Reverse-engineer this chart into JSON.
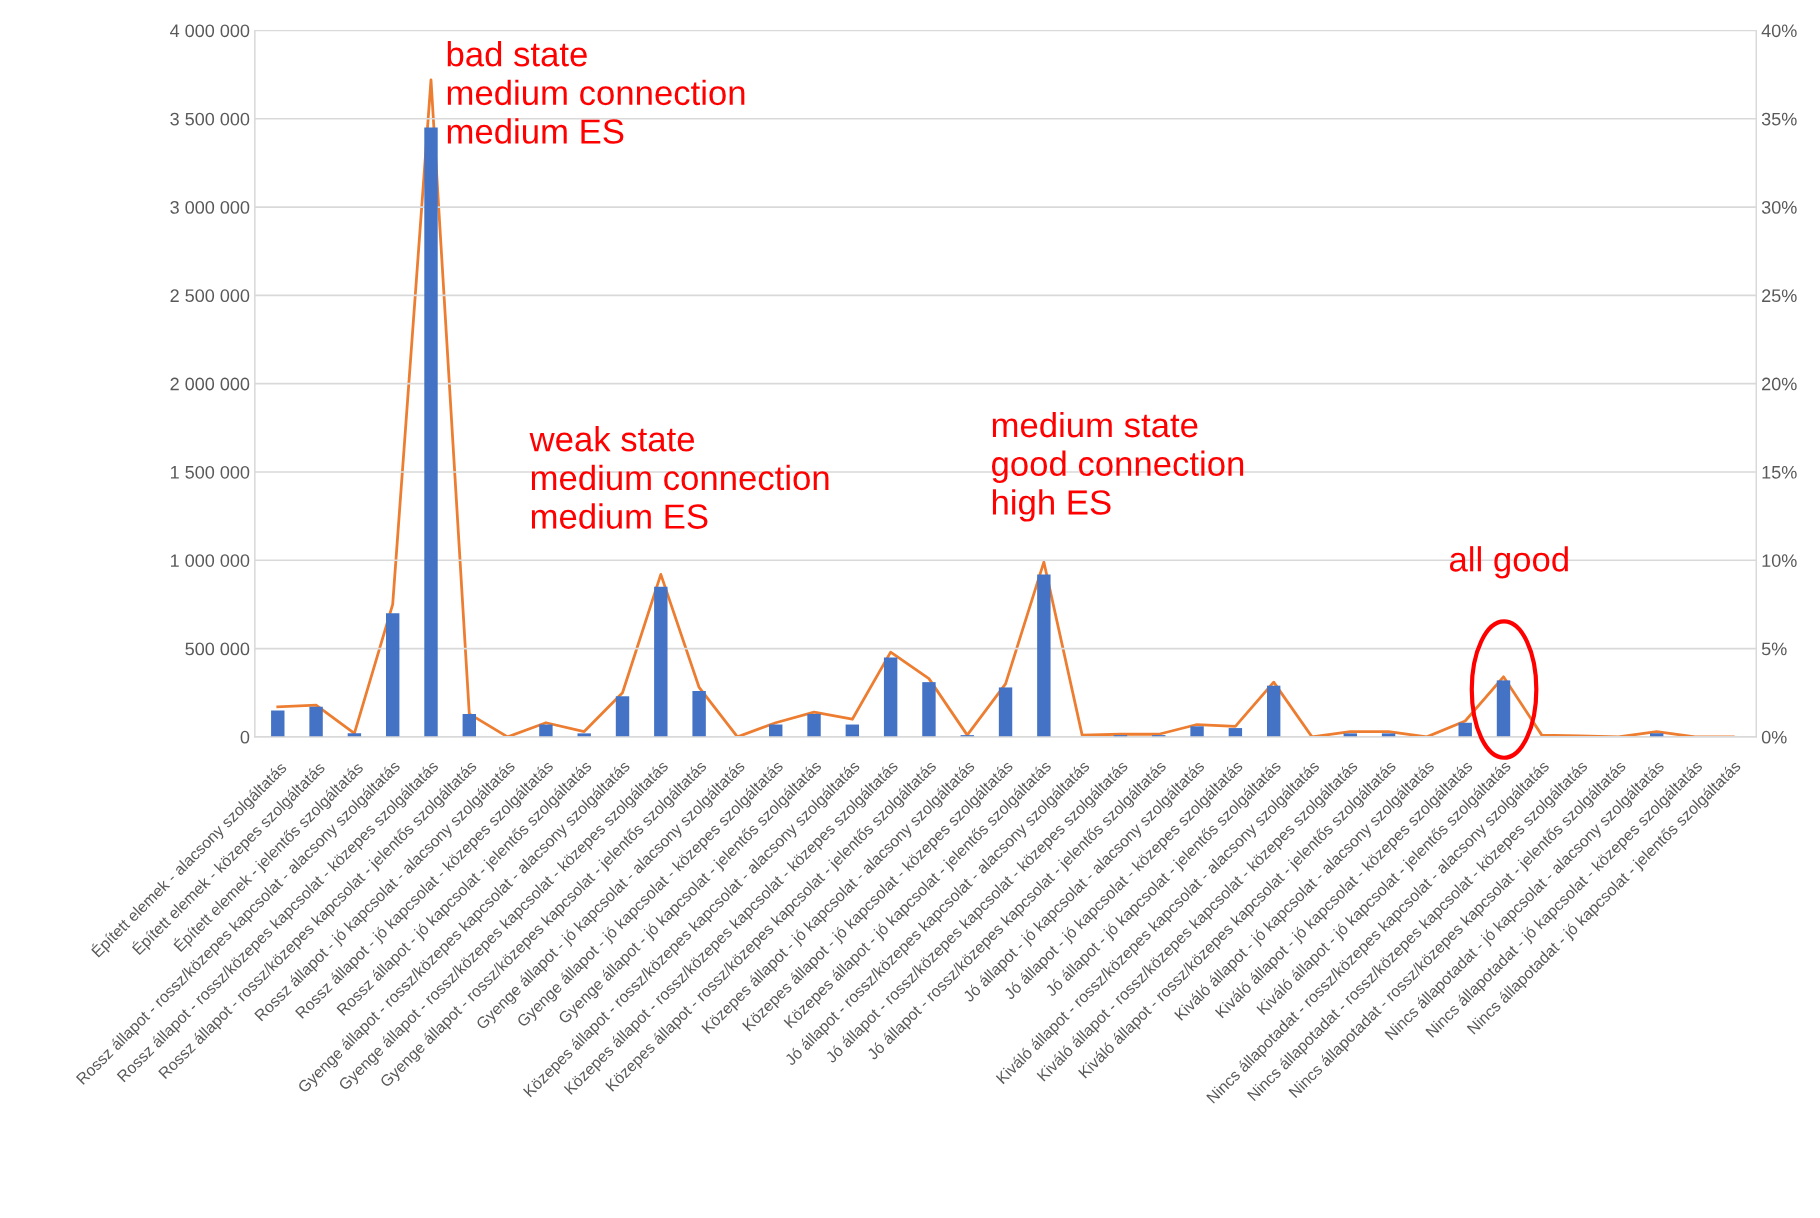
{
  "chart_data": {
    "type": "bar",
    "categories": [
      "Épített elemek - alacsony szolgáltatás",
      "Épített elemek - közepes szolgáltatás",
      "Épített elemek - jelentős szolgáltatás",
      "Rossz állapot - rossz/közepes kapcsolat - alacsony szolgáltatás",
      "Rossz állapot - rossz/közepes kapcsolat - közepes szolgáltatás",
      "Rossz állapot - rossz/közepes kapcsolat - jelentős szolgáltatás",
      "Rossz állapot - jó kapcsolat - alacsony szolgáltatás",
      "Rossz állapot - jó kapcsolat - közepes szolgáltatás",
      "Rossz állapot - jó kapcsolat - jelentős szolgáltatás",
      "Gyenge állapot - rossz/közepes kapcsolat - alacsony szolgáltatás",
      "Gyenge állapot - rossz/közepes kapcsolat - közepes szolgáltatás",
      "Gyenge állapot - rossz/közepes kapcsolat - jelentős szolgáltatás",
      "Gyenge állapot - jó kapcsolat - alacsony szolgáltatás",
      "Gyenge állapot - jó kapcsolat - közepes szolgáltatás",
      "Gyenge állapot - jó kapcsolat - jelentős szolgáltatás",
      "Közepes állapot - rossz/közepes kapcsolat - alacsony szolgáltatás",
      "Közepes állapot - rossz/közepes kapcsolat - közepes szolgáltatás",
      "Közepes állapot - rossz/közepes kapcsolat - jelentős szolgáltatás",
      "Közepes állapot - jó kapcsolat - alacsony szolgáltatás",
      "Közepes állapot - jó kapcsolat - közepes szolgáltatás",
      "Közepes állapot - jó kapcsolat - jelentős szolgáltatás",
      "Jó állapot - rossz/közepes kapcsolat - alacsony szolgáltatás",
      "Jó állapot - rossz/közepes kapcsolat - közepes szolgáltatás",
      "Jó állapot - rossz/közepes kapcsolat - jelentős szolgáltatás",
      "Jó állapot - jó kapcsolat - alacsony szolgáltatás",
      "Jó állapot - jó kapcsolat - közepes szolgáltatás",
      "Jó állapot - jó kapcsolat - jelentős szolgáltatás",
      "Kiváló állapot - rossz/közepes kapcsolat - alacsony szolgáltatás",
      "Kiváló állapot - rossz/közepes kapcsolat - közepes szolgáltatás",
      "Kiváló állapot - rossz/közepes kapcsolat - jelentős szolgáltatás",
      "Kiváló állapot - jó kapcsolat - alacsony szolgáltatás",
      "Kiváló állapot - jó kapcsolat - közepes szolgáltatás",
      "Kiváló állapot - jó kapcsolat - jelentős szolgáltatás",
      "Nincs állapotadat - rossz/közepes kapcsolat - alacsony szolgáltatás",
      "Nincs állapotadat - rossz/közepes kapcsolat - közepes szolgáltatás",
      "Nincs állapotadat - rossz/közepes kapcsolat - jelentős szolgáltatás",
      "Nincs állapotadat - jó kapcsolat - alacsony szolgáltatás",
      "Nincs állapotadat - jó kapcsolat - közepes szolgáltatás",
      "Nincs állapotadat - jó kapcsolat - jelentős szolgáltatás"
    ],
    "series": [
      {
        "color": "#4472c4",
        "values": [
          150000,
          170000,
          20000,
          700000,
          3450000,
          130000,
          0,
          70000,
          20000,
          230000,
          850000,
          260000,
          0,
          70000,
          130000,
          70000,
          450000,
          310000,
          10000,
          280000,
          920000,
          null,
          10000,
          10000,
          60000,
          50000,
          290000,
          0,
          20000,
          20000,
          0,
          80000,
          320000,
          null,
          0,
          0,
          20000,
          0,
          0
        ]
      },
      {
        "type": "line",
        "axis": "y2",
        "color": "#ed7d31",
        "values": [
          1.7,
          1.8,
          0.2,
          7.5,
          37.2,
          1.3,
          0,
          0.8,
          0.3,
          2.5,
          9.2,
          2.8,
          0,
          0.8,
          1.4,
          1.0,
          4.8,
          3.3,
          0.1,
          3.0,
          9.9,
          0.1,
          0.15,
          0.15,
          0.7,
          0.6,
          3.1,
          0,
          0.3,
          0.3,
          0,
          0.9,
          3.4,
          0.1,
          0.05,
          0,
          0.3,
          0,
          0
        ]
      }
    ],
    "ylim": [
      0,
      4000000
    ],
    "yticks": [
      0,
      {
        "value": 500000,
        "label": "500 000"
      },
      {
        "value": 1000000,
        "label": "1 000 000"
      },
      {
        "value": 1500000,
        "label": "1 500 000"
      },
      {
        "value": 2000000,
        "label": "2 000 000"
      },
      {
        "value": 2500000,
        "label": "2 500 000"
      },
      {
        "value": 3000000,
        "label": "3 000 000"
      },
      {
        "value": 3500000,
        "label": "3 500 000"
      },
      {
        "value": 4000000,
        "label": "4 000 000"
      }
    ],
    "y2lim": [
      0,
      40
    ],
    "y2ticks": [
      {
        "value": 0,
        "label": "0%"
      },
      {
        "value": 5,
        "label": "5%"
      },
      {
        "value": 10,
        "label": "10%"
      },
      {
        "value": 15,
        "label": "15%"
      },
      {
        "value": 20,
        "label": "20%"
      },
      {
        "value": 25,
        "label": "25%"
      },
      {
        "value": 30,
        "label": "30%"
      },
      {
        "value": 35,
        "label": "35%"
      },
      {
        "value": 40,
        "label": "40%"
      }
    ],
    "grid": "y",
    "annotations": [
      "bad state\nmedium connection\nmedium ES",
      "weak state\nmedium connection\nmedium ES",
      "medium state\ngood connection\nhigh ES",
      "all good"
    ]
  }
}
